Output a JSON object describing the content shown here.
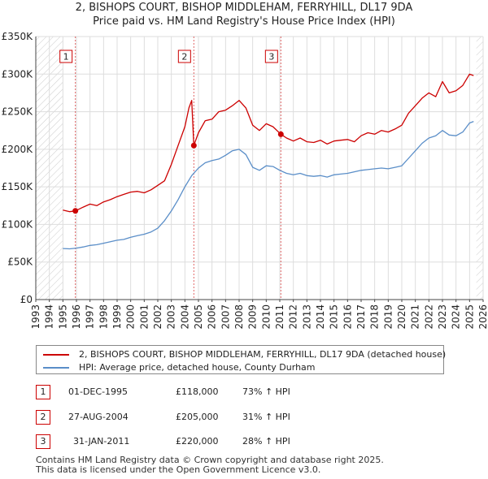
{
  "chart_data": {
    "type": "line",
    "title": "2, BISHOPS COURT, BISHOP MIDDLEHAM, FERRYHILL, DL17 9DA",
    "subtitle": "Price paid vs. HM Land Registry's House Price Index (HPI)",
    "xlabel": "",
    "ylabel": "",
    "xlim": [
      1993,
      2026
    ],
    "ylim": [
      0,
      350000
    ],
    "x_ticks": [
      "1993",
      "1994",
      "1995",
      "1996",
      "1997",
      "1998",
      "1999",
      "2000",
      "2001",
      "2002",
      "2003",
      "2004",
      "2005",
      "2006",
      "2007",
      "2008",
      "2009",
      "2010",
      "2011",
      "2012",
      "2013",
      "2014",
      "2015",
      "2016",
      "2017",
      "2018",
      "2019",
      "2020",
      "2021",
      "2022",
      "2023",
      "2024",
      "2025",
      "2026"
    ],
    "y_ticks": [
      {
        "value": 0,
        "label": "£0"
      },
      {
        "value": 50000,
        "label": "£50K"
      },
      {
        "value": 100000,
        "label": "£100K"
      },
      {
        "value": 150000,
        "label": "£150K"
      },
      {
        "value": 200000,
        "label": "£200K"
      },
      {
        "value": 250000,
        "label": "£250K"
      },
      {
        "value": 300000,
        "label": "£300K"
      },
      {
        "value": 350000,
        "label": "£350K"
      }
    ],
    "hatched_range_before": 1995.0,
    "hatched_range_after": 2025.5,
    "series": [
      {
        "name": "2, BISHOPS COURT, BISHOP MIDDLEHAM, FERRYHILL, DL17 9DA (detached house)",
        "color": "#cc0000",
        "x": [
          1995.0,
          1995.5,
          1995.92,
          1996.5,
          1997.0,
          1997.5,
          1998.0,
          1998.5,
          1999.0,
          1999.5,
          2000.0,
          2000.5,
          2001.0,
          2001.5,
          2002.0,
          2002.5,
          2003.0,
          2003.5,
          2004.0,
          2004.3,
          2004.5,
          2004.66,
          2005.0,
          2005.5,
          2006.0,
          2006.5,
          2007.0,
          2007.5,
          2008.0,
          2008.5,
          2009.0,
          2009.5,
          2010.0,
          2010.5,
          2011.08,
          2011.5,
          2012.0,
          2012.5,
          2013.0,
          2013.5,
          2014.0,
          2014.5,
          2015.0,
          2015.5,
          2016.0,
          2016.5,
          2017.0,
          2017.5,
          2018.0,
          2018.5,
          2019.0,
          2019.5,
          2020.0,
          2020.5,
          2021.0,
          2021.5,
          2022.0,
          2022.5,
          2023.0,
          2023.5,
          2024.0,
          2024.5,
          2025.0,
          2025.3
        ],
        "values": [
          119000,
          117000,
          118000,
          123000,
          127000,
          125000,
          130000,
          133000,
          137000,
          140000,
          143000,
          144000,
          142000,
          146000,
          152000,
          158000,
          180000,
          205000,
          230000,
          255000,
          265000,
          205000,
          222000,
          238000,
          240000,
          250000,
          252000,
          258000,
          265000,
          255000,
          232000,
          225000,
          234000,
          230000,
          220000,
          215000,
          211000,
          215000,
          210000,
          209000,
          212000,
          207000,
          211000,
          212000,
          213000,
          210000,
          218000,
          222000,
          220000,
          225000,
          223000,
          227000,
          232000,
          248000,
          258000,
          268000,
          275000,
          270000,
          290000,
          275000,
          278000,
          285000,
          300000,
          298000
        ]
      },
      {
        "name": "HPI: Average price, detached house, County Durham",
        "color": "#5a8ec8",
        "x": [
          1995.0,
          1995.5,
          1996.0,
          1996.5,
          1997.0,
          1997.5,
          1998.0,
          1998.5,
          1999.0,
          1999.5,
          2000.0,
          2000.5,
          2001.0,
          2001.5,
          2002.0,
          2002.5,
          2003.0,
          2003.5,
          2004.0,
          2004.5,
          2005.0,
          2005.5,
          2006.0,
          2006.5,
          2007.0,
          2007.5,
          2008.0,
          2008.5,
          2009.0,
          2009.5,
          2010.0,
          2010.5,
          2011.0,
          2011.5,
          2012.0,
          2012.5,
          2013.0,
          2013.5,
          2014.0,
          2014.5,
          2015.0,
          2015.5,
          2016.0,
          2016.5,
          2017.0,
          2017.5,
          2018.0,
          2018.5,
          2019.0,
          2019.5,
          2020.0,
          2020.5,
          2021.0,
          2021.5,
          2022.0,
          2022.5,
          2023.0,
          2023.5,
          2024.0,
          2024.5,
          2025.0,
          2025.3
        ],
        "values": [
          68000,
          67500,
          68500,
          70000,
          72000,
          73000,
          75000,
          77000,
          79000,
          80000,
          83000,
          85000,
          87000,
          90000,
          95000,
          105000,
          118000,
          133000,
          150000,
          165000,
          175000,
          182000,
          185000,
          187000,
          192000,
          198000,
          200000,
          193000,
          176000,
          172000,
          178000,
          177000,
          172000,
          168000,
          166000,
          168000,
          165000,
          164000,
          165000,
          163000,
          166000,
          167000,
          168000,
          170000,
          172000,
          173000,
          174000,
          175000,
          174000,
          176000,
          178000,
          188000,
          198000,
          208000,
          215000,
          218000,
          225000,
          219000,
          218000,
          223000,
          235000,
          237000
        ]
      }
    ],
    "sales": [
      {
        "label": "1",
        "x": 1995.92,
        "value": 118000
      },
      {
        "label": "2",
        "x": 2004.66,
        "value": 205000
      },
      {
        "label": "3",
        "x": 2011.08,
        "value": 220000
      }
    ]
  },
  "legend": {
    "property_label": "2, BISHOPS COURT, BISHOP MIDDLEHAM, FERRYHILL, DL17 9DA (detached house)",
    "hpi_label": "HPI: Average price, detached house, County Durham"
  },
  "sales_table": [
    {
      "badge": "1",
      "date": "01-DEC-1995",
      "price": "£118,000",
      "hpi": "73% ↑ HPI"
    },
    {
      "badge": "2",
      "date": "27-AUG-2004",
      "price": "£205,000",
      "hpi": "31% ↑ HPI"
    },
    {
      "badge": "3",
      "date": "31-JAN-2011",
      "price": "£220,000",
      "hpi": "28% ↑ HPI"
    }
  ],
  "footer": {
    "line1": "Contains HM Land Registry data © Crown copyright and database right 2025.",
    "line2": "This data is licensed under the Open Government Licence v3.0."
  },
  "colors": {
    "property": "#cc0000",
    "hpi": "#5a8ec8",
    "grid": "#dddddd",
    "hatch": "#cccccc"
  }
}
